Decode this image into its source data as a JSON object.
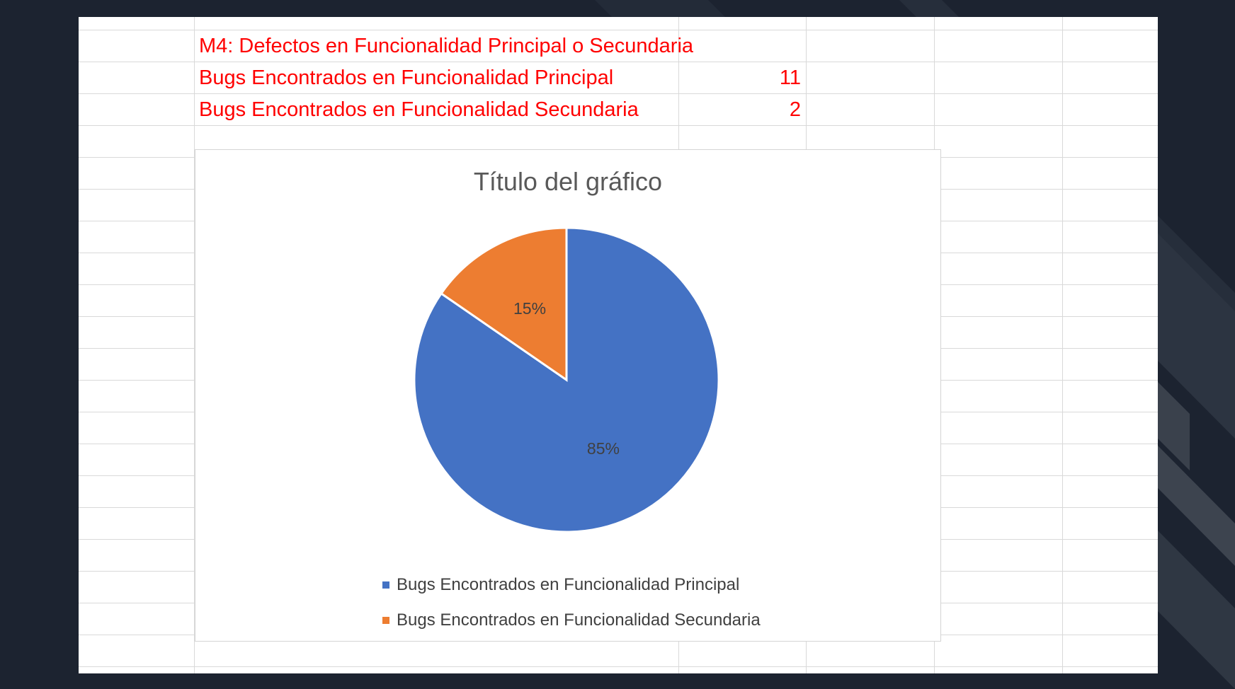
{
  "sheet": {
    "title_cell": "M4: Defectos en Funcionalidad Principal o Secundaria",
    "rows": [
      {
        "label": "Bugs Encontrados en Funcionalidad Principal",
        "value": "11"
      },
      {
        "label": "Bugs Encontrados en Funcionalidad Secundaria",
        "value": "2"
      }
    ],
    "text_color": "#ff0000",
    "grid_color": "#d9d9d9"
  },
  "chart_data": {
    "type": "pie",
    "title": "Título del gráfico",
    "categories": [
      "Bugs Encontrados en Funcionalidad Principal",
      "Bugs Encontrados en Funcionalidad Secundaria"
    ],
    "values": [
      11,
      2
    ],
    "data_labels": [
      "85%",
      "15%"
    ],
    "colors": [
      "#4472c4",
      "#ed7d31"
    ],
    "legend_position": "bottom"
  }
}
